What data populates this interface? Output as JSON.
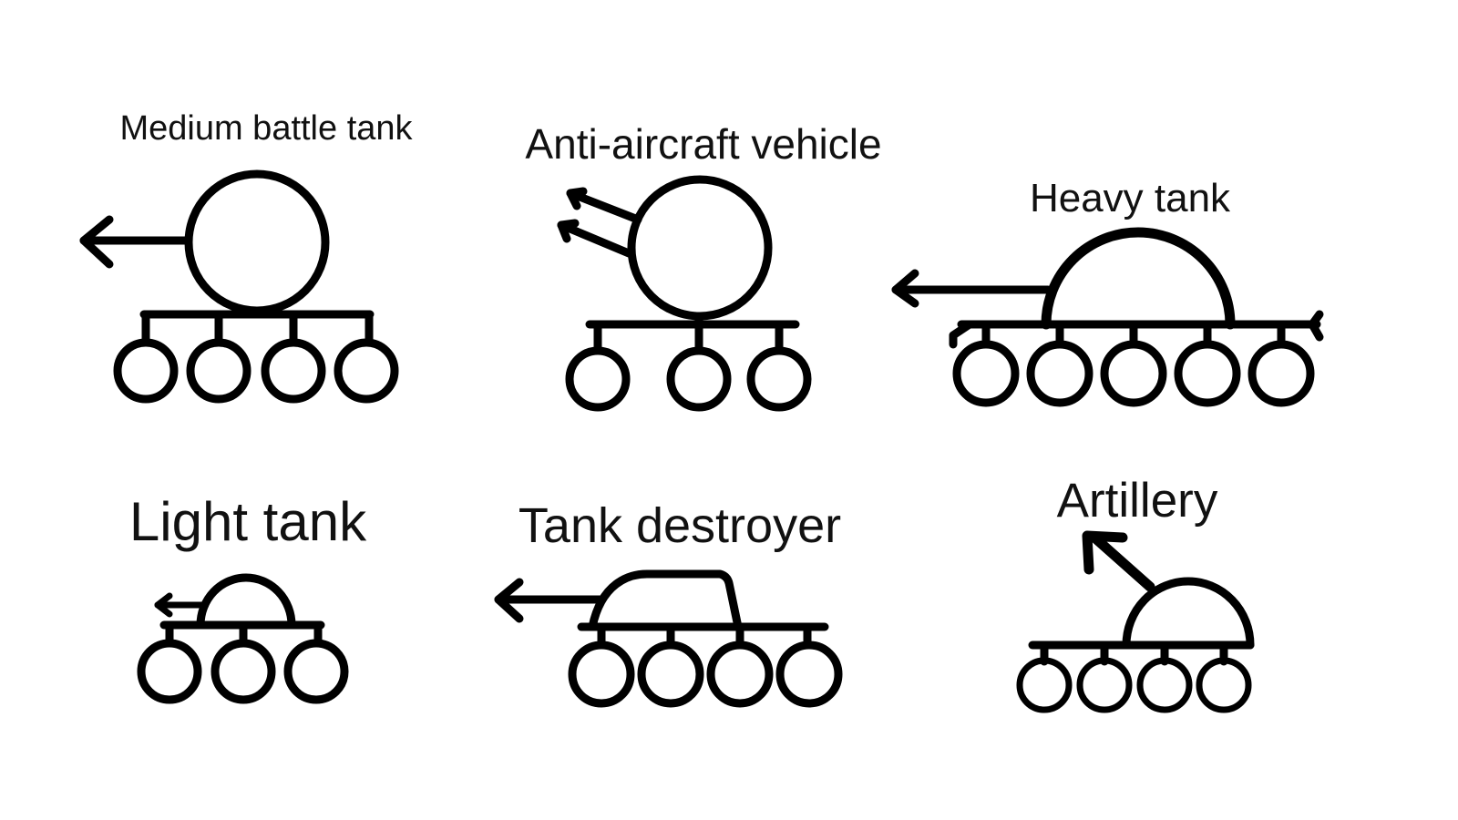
{
  "vehicles": [
    {
      "key": "medium",
      "label": "Medium battle tank",
      "turret_shape": "circle",
      "gun": "single-horizontal",
      "wheel_count": 4
    },
    {
      "key": "antiair",
      "label": "Anti-aircraft vehicle",
      "turret_shape": "circle",
      "gun": "twin-angled",
      "wheel_count": 3
    },
    {
      "key": "heavy",
      "label": "Heavy tank",
      "turret_shape": "dome",
      "gun": "single-horizontal",
      "wheel_count": 5
    },
    {
      "key": "light",
      "label": "Light tank",
      "turret_shape": "small-dome",
      "gun": "short-horizontal",
      "wheel_count": 3
    },
    {
      "key": "destroyer",
      "label": "Tank destroyer",
      "turret_shape": "casemate",
      "gun": "single-horizontal",
      "wheel_count": 4
    },
    {
      "key": "artillery",
      "label": "Artillery",
      "turret_shape": "dome",
      "gun": "elevated",
      "wheel_count": 4
    }
  ],
  "colors": {
    "ink": "#000000",
    "background": "#ffffff"
  }
}
